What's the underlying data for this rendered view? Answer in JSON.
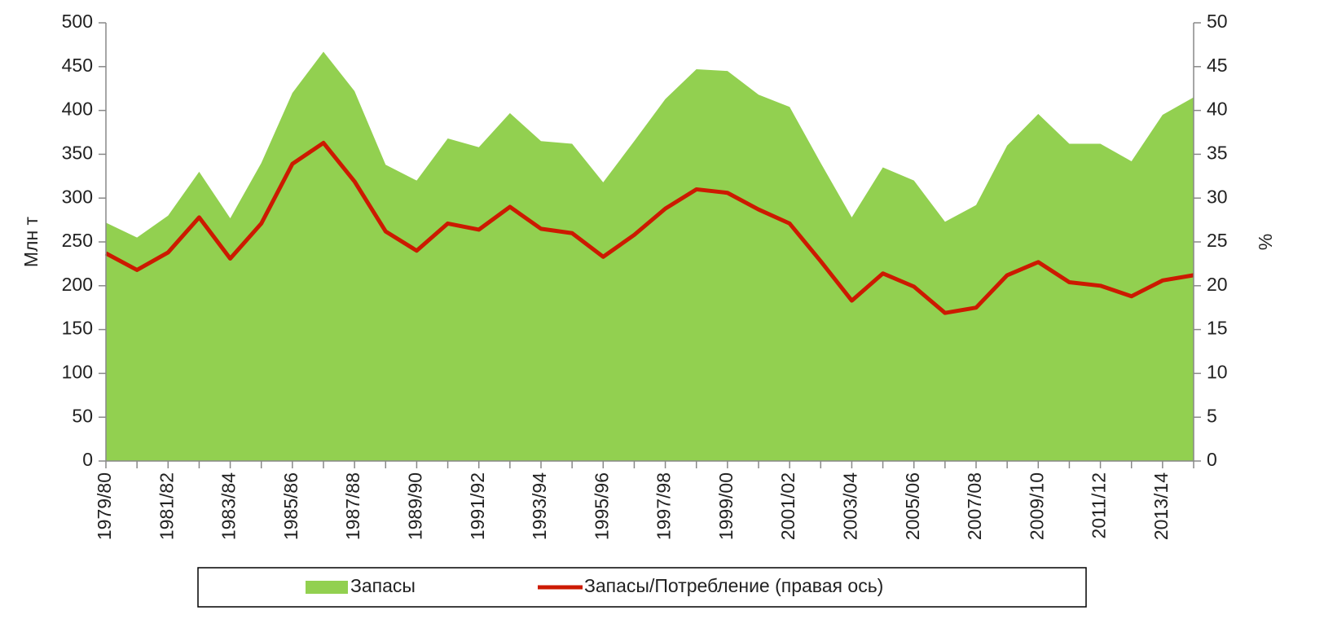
{
  "chart_data": {
    "type": "area-line",
    "categories": [
      "1979/80",
      null,
      "1981/82",
      null,
      "1983/84",
      null,
      "1985/86",
      null,
      "1987/88",
      null,
      "1989/90",
      null,
      "1991/92",
      null,
      "1993/94",
      null,
      "1995/96",
      null,
      "1997/98",
      null,
      "1999/00",
      null,
      "2001/02",
      null,
      "2003/04",
      null,
      "2005/06",
      null,
      "2007/08",
      null,
      "2009/10",
      null,
      "2011/12",
      null,
      "2013/14",
      null
    ],
    "series": [
      {
        "name": "Запасы",
        "color": "#92d050",
        "type": "area",
        "values": [
          272,
          255,
          280,
          330,
          277,
          340,
          420,
          467,
          422,
          338,
          320,
          368,
          358,
          397,
          365,
          362,
          318,
          365,
          413,
          447,
          445,
          418,
          404,
          340,
          278,
          335,
          320,
          273,
          292,
          360,
          396,
          362,
          362,
          342,
          395,
          415
        ]
      },
      {
        "name": "Запасы/Потребление (правая ось)",
        "color": "#cc1a00",
        "type": "line",
        "axis": "y2",
        "values": [
          23.7,
          21.8,
          23.8,
          27.8,
          23.1,
          27.1,
          33.9,
          36.3,
          31.9,
          26.2,
          24.0,
          27.1,
          26.4,
          29.0,
          26.5,
          26.0,
          23.3,
          25.8,
          28.8,
          31.0,
          30.6,
          28.7,
          27.1,
          22.8,
          18.3,
          21.4,
          19.9,
          16.9,
          17.5,
          21.2,
          22.7,
          20.4,
          20.0,
          18.8,
          20.6,
          21.2
        ]
      }
    ],
    "ylabel": "Млн т",
    "y2label": "%",
    "ylim": [
      0,
      500
    ],
    "yticks": [
      0,
      50,
      100,
      150,
      200,
      250,
      300,
      350,
      400,
      450,
      500
    ],
    "y2lim": [
      0,
      50
    ],
    "y2ticks": [
      0,
      5,
      10,
      15,
      20,
      25,
      30,
      35,
      40,
      45,
      50
    ],
    "legend": "bottom"
  }
}
